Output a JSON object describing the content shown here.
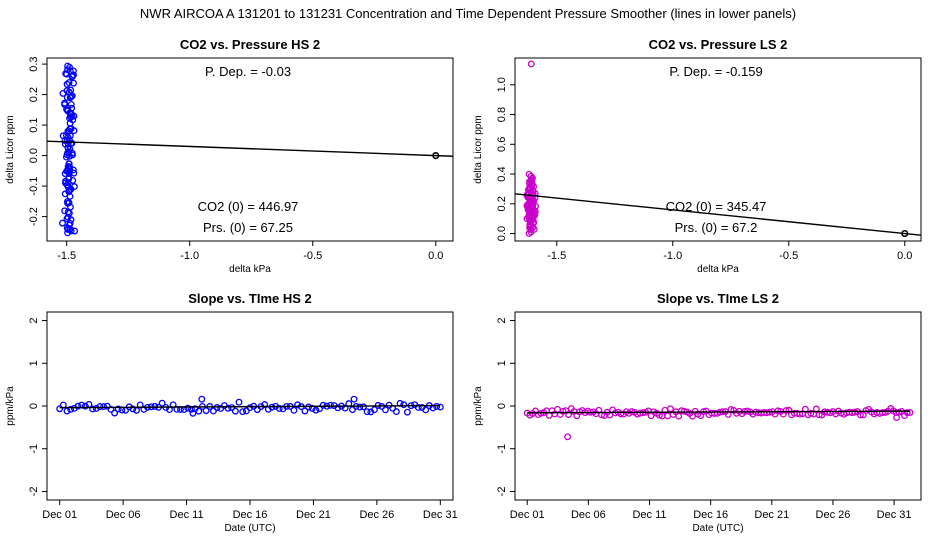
{
  "figure_title": "NWR   AIRCOA A   131201 to 131231   Concentration and Time Dependent Pressure Smoother (lines in lower panels)",
  "colors": {
    "hs": "#0000ff",
    "ls": "#cc00cc",
    "line": "#000000",
    "axis": "#000000"
  },
  "chart_data": [
    {
      "id": "hs-pressure",
      "type": "scatter",
      "title": "CO2 vs. Pressure HS 2",
      "xlabel": "delta kPa",
      "ylabel": "delta Licor ppm",
      "xlim": [
        -1.58,
        0.07
      ],
      "ylim": [
        -0.28,
        0.32
      ],
      "xticks": [
        -1.5,
        -1.0,
        -0.5,
        0.0
      ],
      "xtick_labels": [
        "-1.5",
        "-1.0",
        "-0.5",
        "0.0"
      ],
      "yticks": [
        -0.2,
        -0.1,
        0.0,
        0.1,
        0.2,
        0.3
      ],
      "ytick_labels": [
        "-0.2",
        "-0.1",
        "0.0",
        "0.1",
        "0.2",
        "0.3"
      ],
      "annotations": {
        "p_dep": "P. Dep. =  -0.03",
        "co2_0": "CO2 (0) =  446.97",
        "prs_0": "Prs. (0) =  67.25"
      },
      "fit_line": {
        "x": [
          -1.58,
          0.07
        ],
        "y": [
          0.0474,
          -0.0021
        ]
      },
      "reference_point": {
        "x": 0.0,
        "y": 0.0
      },
      "cluster": {
        "x_center": -1.49,
        "x_spread": 0.03,
        "y_min": -0.26,
        "y_max": 0.3,
        "n": 110,
        "seed": 11
      }
    },
    {
      "id": "ls-pressure",
      "type": "scatter",
      "title": "CO2 vs. Pressure LS 2",
      "xlabel": "delta kPa",
      "ylabel": "delta Licor ppm",
      "xlim": [
        -1.68,
        0.07
      ],
      "ylim": [
        -0.05,
        1.18
      ],
      "xticks": [
        -1.5,
        -1.0,
        -0.5,
        0.0
      ],
      "xtick_labels": [
        "-1.5",
        "-1.0",
        "-0.5",
        "0.0"
      ],
      "yticks": [
        0.0,
        0.2,
        0.4,
        0.6,
        0.8,
        1.0
      ],
      "ytick_labels": [
        "0.0",
        "0.2",
        "0.4",
        "0.6",
        "0.8",
        "1.0"
      ],
      "annotations": {
        "p_dep": "P. Dep. =  -0.159",
        "co2_0": "CO2 (0) =  345.47",
        "prs_0": "Prs. (0) =  67.2"
      },
      "fit_line": {
        "x": [
          -1.68,
          0.07
        ],
        "y": [
          0.267,
          -0.011
        ]
      },
      "reference_point": {
        "x": 0.0,
        "y": 0.0
      },
      "outlier": {
        "x": -1.61,
        "y": 1.14
      },
      "cluster": {
        "x_center": -1.61,
        "x_spread": 0.025,
        "y_min": -0.03,
        "y_max": 0.46,
        "n": 130,
        "seed": 23
      }
    },
    {
      "id": "hs-time",
      "type": "scatter",
      "title": "Slope vs. TIme HS 2",
      "xlabel": "Date (UTC)",
      "ylabel": "ppm/kPa",
      "xlim": [
        0,
        32
      ],
      "ylim": [
        -2.2,
        2.2
      ],
      "xticks": [
        1,
        6,
        11,
        16,
        21,
        26,
        31
      ],
      "xtick_labels": [
        "Dec 01",
        "Dec 06",
        "Dec 11",
        "Dec 16",
        "Dec 21",
        "Dec 26",
        "Dec 31"
      ],
      "yticks": [
        -2,
        -1,
        0,
        1,
        2
      ],
      "ytick_labels": [
        "-2",
        "-1",
        "0",
        "1",
        "2"
      ],
      "fit_line": {
        "x": [
          1,
          31
        ],
        "y": [
          -0.04,
          0.01
        ]
      },
      "series": {
        "x_start": 1,
        "x_end": 31,
        "n": 105,
        "mean": -0.03,
        "spread": 0.18,
        "seed": 5,
        "extra_points": [
          {
            "x": 12.2,
            "y": 0.16
          },
          {
            "x": 11.5,
            "y": -0.17
          },
          {
            "x": 24.2,
            "y": 0.16
          }
        ]
      }
    },
    {
      "id": "ls-time",
      "type": "scatter",
      "title": "Slope vs. TIme LS 2",
      "xlabel": "Date (UTC)",
      "ylabel": "ppm/kPa",
      "xlim": [
        0,
        33.2
      ],
      "ylim": [
        -2.2,
        2.2
      ],
      "xticks": [
        1,
        6,
        11,
        16,
        21,
        26,
        31
      ],
      "xtick_labels": [
        "Dec 01",
        "Dec 06",
        "Dec 11",
        "Dec 16",
        "Dec 21",
        "Dec 26",
        "Dec 31"
      ],
      "yticks": [
        -2,
        -1,
        0,
        1,
        2
      ],
      "ytick_labels": [
        "-2",
        "-1",
        "0",
        "1",
        "2"
      ],
      "fit_line": {
        "x": [
          1,
          32.3
        ],
        "y": [
          -0.16,
          -0.12
        ]
      },
      "series": {
        "x_start": 1,
        "x_end": 32.3,
        "n": 140,
        "mean": -0.15,
        "spread": 0.13,
        "seed": 9,
        "extra_points": [
          {
            "x": 4.3,
            "y": -0.72
          },
          {
            "x": 31.2,
            "y": -0.27
          }
        ]
      }
    }
  ]
}
